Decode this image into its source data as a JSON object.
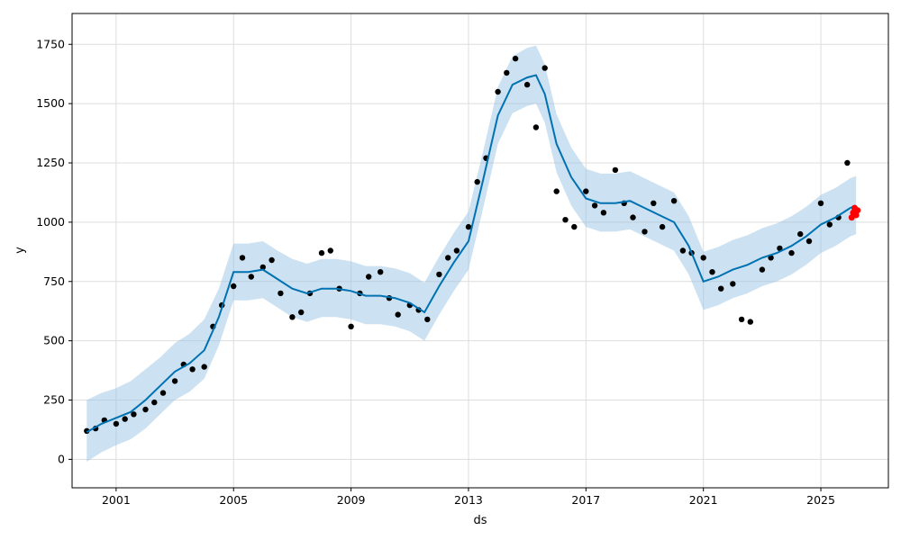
{
  "chart_data": {
    "type": "line",
    "title": "",
    "xlabel": "ds",
    "ylabel": "y",
    "x_range": [
      1999.5,
      2027.3
    ],
    "ylim": [
      -120,
      1880
    ],
    "grid": true,
    "legend": "none",
    "x_ticks": [
      {
        "value": 2001,
        "label": "2001"
      },
      {
        "value": 2005,
        "label": "2005"
      },
      {
        "value": 2009,
        "label": "2009"
      },
      {
        "value": 2013,
        "label": "2013"
      },
      {
        "value": 2017,
        "label": "2017"
      },
      {
        "value": 2021,
        "label": "2021"
      },
      {
        "value": 2025,
        "label": "2025"
      }
    ],
    "y_ticks": [
      {
        "value": 0,
        "label": "0"
      },
      {
        "value": 250,
        "label": "250"
      },
      {
        "value": 500,
        "label": "500"
      },
      {
        "value": 750,
        "label": "750"
      },
      {
        "value": 1000,
        "label": "1000"
      },
      {
        "value": 1250,
        "label": "1250"
      },
      {
        "value": 1500,
        "label": "1500"
      },
      {
        "value": 1750,
        "label": "1750"
      }
    ],
    "colors": {
      "forecast": "#0072b2",
      "interval": "#9ac3e3",
      "observed": "#000000",
      "future": "#ff0000",
      "grid": "#dddddd"
    },
    "series": [
      {
        "kind": "forecast",
        "x": [
          2000.0,
          2000.5,
          2001.0,
          2001.5,
          2002.0,
          2002.5,
          2003.0,
          2003.5,
          2004.0,
          2004.5,
          2005.0,
          2005.5,
          2006.0,
          2006.5,
          2007.0,
          2007.5,
          2008.0,
          2008.5,
          2009.0,
          2009.5,
          2010.0,
          2010.5,
          2011.0,
          2011.5,
          2012.0,
          2012.5,
          2013.0,
          2013.5,
          2014.0,
          2014.5,
          2015.0,
          2015.3,
          2015.6,
          2016.0,
          2016.5,
          2017.0,
          2017.5,
          2018.0,
          2018.5,
          2019.0,
          2019.5,
          2020.0,
          2020.5,
          2021.0,
          2021.5,
          2022.0,
          2022.5,
          2023.0,
          2023.5,
          2024.0,
          2024.5,
          2025.0,
          2025.5,
          2026.0,
          2026.2
        ],
        "y": [
          115,
          150,
          175,
          200,
          250,
          310,
          370,
          405,
          460,
          600,
          790,
          790,
          800,
          760,
          720,
          700,
          720,
          720,
          710,
          690,
          690,
          680,
          660,
          620,
          730,
          830,
          920,
          1180,
          1450,
          1580,
          1610,
          1620,
          1540,
          1330,
          1190,
          1100,
          1080,
          1080,
          1090,
          1060,
          1030,
          1000,
          900,
          750,
          770,
          800,
          820,
          850,
          870,
          900,
          940,
          990,
          1020,
          1060,
          1070
        ]
      },
      {
        "kind": "interval",
        "x": [
          2000.0,
          2000.5,
          2001.0,
          2001.5,
          2002.0,
          2002.5,
          2003.0,
          2003.5,
          2004.0,
          2004.5,
          2005.0,
          2005.5,
          2006.0,
          2006.5,
          2007.0,
          2007.5,
          2008.0,
          2008.5,
          2009.0,
          2009.5,
          2010.0,
          2010.5,
          2011.0,
          2011.5,
          2012.0,
          2012.5,
          2013.0,
          2013.5,
          2014.0,
          2014.5,
          2015.0,
          2015.3,
          2015.6,
          2016.0,
          2016.5,
          2017.0,
          2017.5,
          2018.0,
          2018.5,
          2019.0,
          2019.5,
          2020.0,
          2020.5,
          2021.0,
          2021.5,
          2022.0,
          2022.5,
          2023.0,
          2023.5,
          2024.0,
          2024.5,
          2025.0,
          2025.5,
          2026.0,
          2026.2
        ],
        "upper": [
          250,
          280,
          300,
          330,
          380,
          430,
          490,
          530,
          590,
          720,
          910,
          910,
          920,
          880,
          845,
          825,
          845,
          845,
          835,
          815,
          815,
          805,
          785,
          745,
          855,
          955,
          1045,
          1300,
          1570,
          1700,
          1735,
          1745,
          1665,
          1455,
          1315,
          1225,
          1205,
          1205,
          1215,
          1185,
          1155,
          1125,
          1025,
          875,
          895,
          925,
          945,
          975,
          995,
          1025,
          1065,
          1115,
          1145,
          1185,
          1195
        ],
        "lower": [
          -10,
          30,
          60,
          85,
          130,
          190,
          250,
          285,
          340,
          480,
          670,
          670,
          680,
          640,
          600,
          580,
          600,
          600,
          590,
          570,
          570,
          560,
          540,
          500,
          610,
          710,
          800,
          1060,
          1330,
          1460,
          1490,
          1500,
          1420,
          1210,
          1070,
          980,
          960,
          960,
          970,
          940,
          910,
          880,
          780,
          630,
          650,
          680,
          700,
          730,
          750,
          780,
          820,
          870,
          900,
          940,
          950
        ]
      },
      {
        "kind": "observed",
        "x": [
          2000.0,
          2000.3,
          2000.6,
          2001.0,
          2001.3,
          2001.6,
          2002.0,
          2002.3,
          2002.6,
          2003.0,
          2003.3,
          2003.6,
          2004.0,
          2004.3,
          2004.6,
          2005.0,
          2005.3,
          2005.6,
          2006.0,
          2006.3,
          2006.6,
          2007.0,
          2007.3,
          2007.6,
          2008.0,
          2008.3,
          2008.6,
          2009.0,
          2009.3,
          2009.6,
          2010.0,
          2010.3,
          2010.6,
          2011.0,
          2011.3,
          2011.6,
          2012.0,
          2012.3,
          2012.6,
          2013.0,
          2013.3,
          2013.6,
          2014.0,
          2014.3,
          2014.6,
          2015.0,
          2015.3,
          2015.6,
          2016.0,
          2016.3,
          2016.6,
          2017.0,
          2017.3,
          2017.6,
          2018.0,
          2018.3,
          2018.6,
          2019.0,
          2019.3,
          2019.6,
          2020.0,
          2020.3,
          2020.6,
          2021.0,
          2021.3,
          2021.6,
          2022.0,
          2022.3,
          2022.6,
          2023.0,
          2023.3,
          2023.6,
          2024.0,
          2024.3,
          2024.6,
          2025.0,
          2025.3,
          2025.6,
          2025.9
        ],
        "y": [
          120,
          130,
          165,
          150,
          170,
          190,
          210,
          240,
          280,
          330,
          400,
          380,
          390,
          560,
          650,
          730,
          850,
          770,
          810,
          840,
          700,
          600,
          620,
          700,
          870,
          880,
          720,
          560,
          700,
          770,
          790,
          680,
          610,
          650,
          630,
          590,
          780,
          850,
          880,
          980,
          1170,
          1270,
          1550,
          1630,
          1690,
          1580,
          1400,
          1650,
          1130,
          1010,
          980,
          1130,
          1070,
          1040,
          1220,
          1080,
          1020,
          960,
          1080,
          980,
          1090,
          880,
          870,
          850,
          790,
          720,
          740,
          590,
          580,
          800,
          850,
          890,
          870,
          950,
          920,
          1080,
          990,
          1020,
          1250
        ]
      },
      {
        "kind": "future",
        "x": [
          2026.05,
          2026.1,
          2026.15,
          2026.2,
          2026.25
        ],
        "y": [
          1020,
          1040,
          1060,
          1030,
          1050
        ]
      }
    ]
  }
}
